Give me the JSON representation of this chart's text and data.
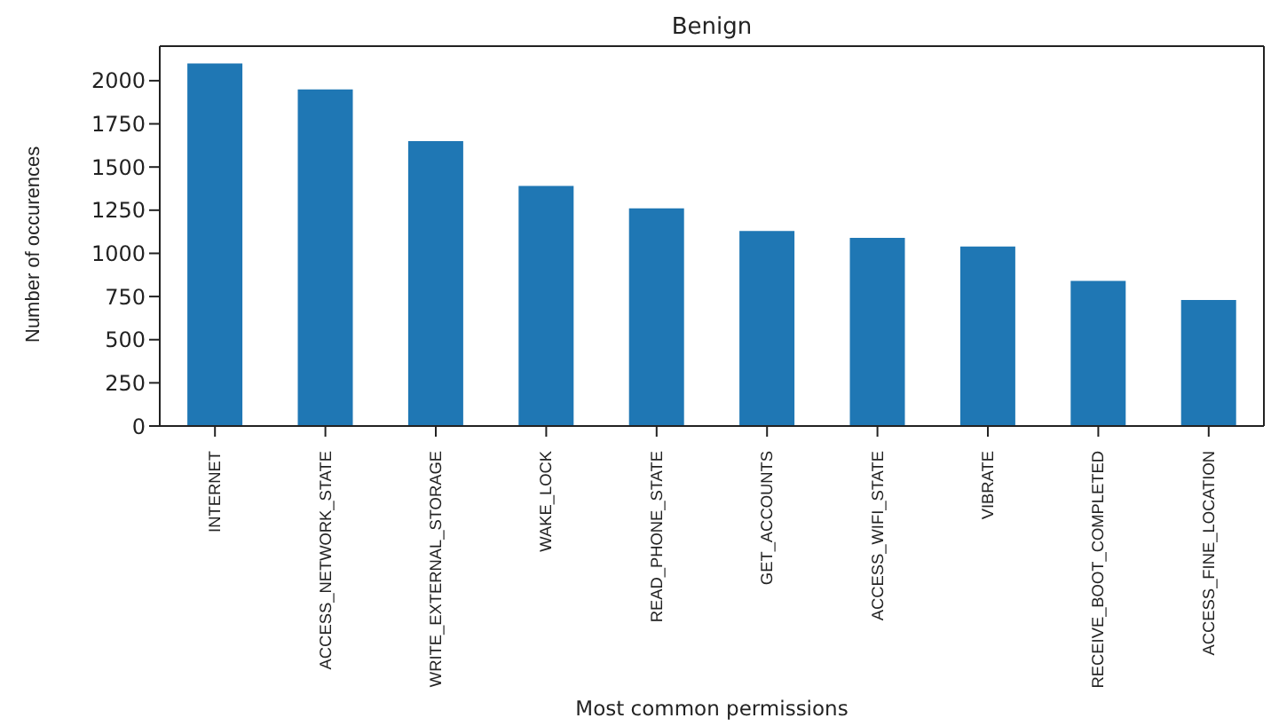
{
  "chart_data": {
    "type": "bar",
    "title": "Benign",
    "xlabel": "Most common permissions",
    "ylabel": "Number of occurences",
    "categories": [
      "INTERNET",
      "ACCESS_NETWORK_STATE",
      "WRITE_EXTERNAL_STORAGE",
      "WAKE_LOCK",
      "READ_PHONE_STATE",
      "GET_ACCOUNTS",
      "ACCESS_WIFI_STATE",
      "VIBRATE",
      "RECEIVE_BOOT_COMPLETED",
      "ACCESS_FINE_LOCATION"
    ],
    "values": [
      2100,
      1950,
      1650,
      1390,
      1260,
      1130,
      1090,
      1040,
      840,
      730
    ],
    "color": "#1f77b4",
    "ylim": [
      0,
      2200
    ],
    "yticks": [
      0,
      250,
      500,
      750,
      1000,
      1250,
      1500,
      1750,
      2000
    ],
    "grid": false,
    "legend": false
  }
}
